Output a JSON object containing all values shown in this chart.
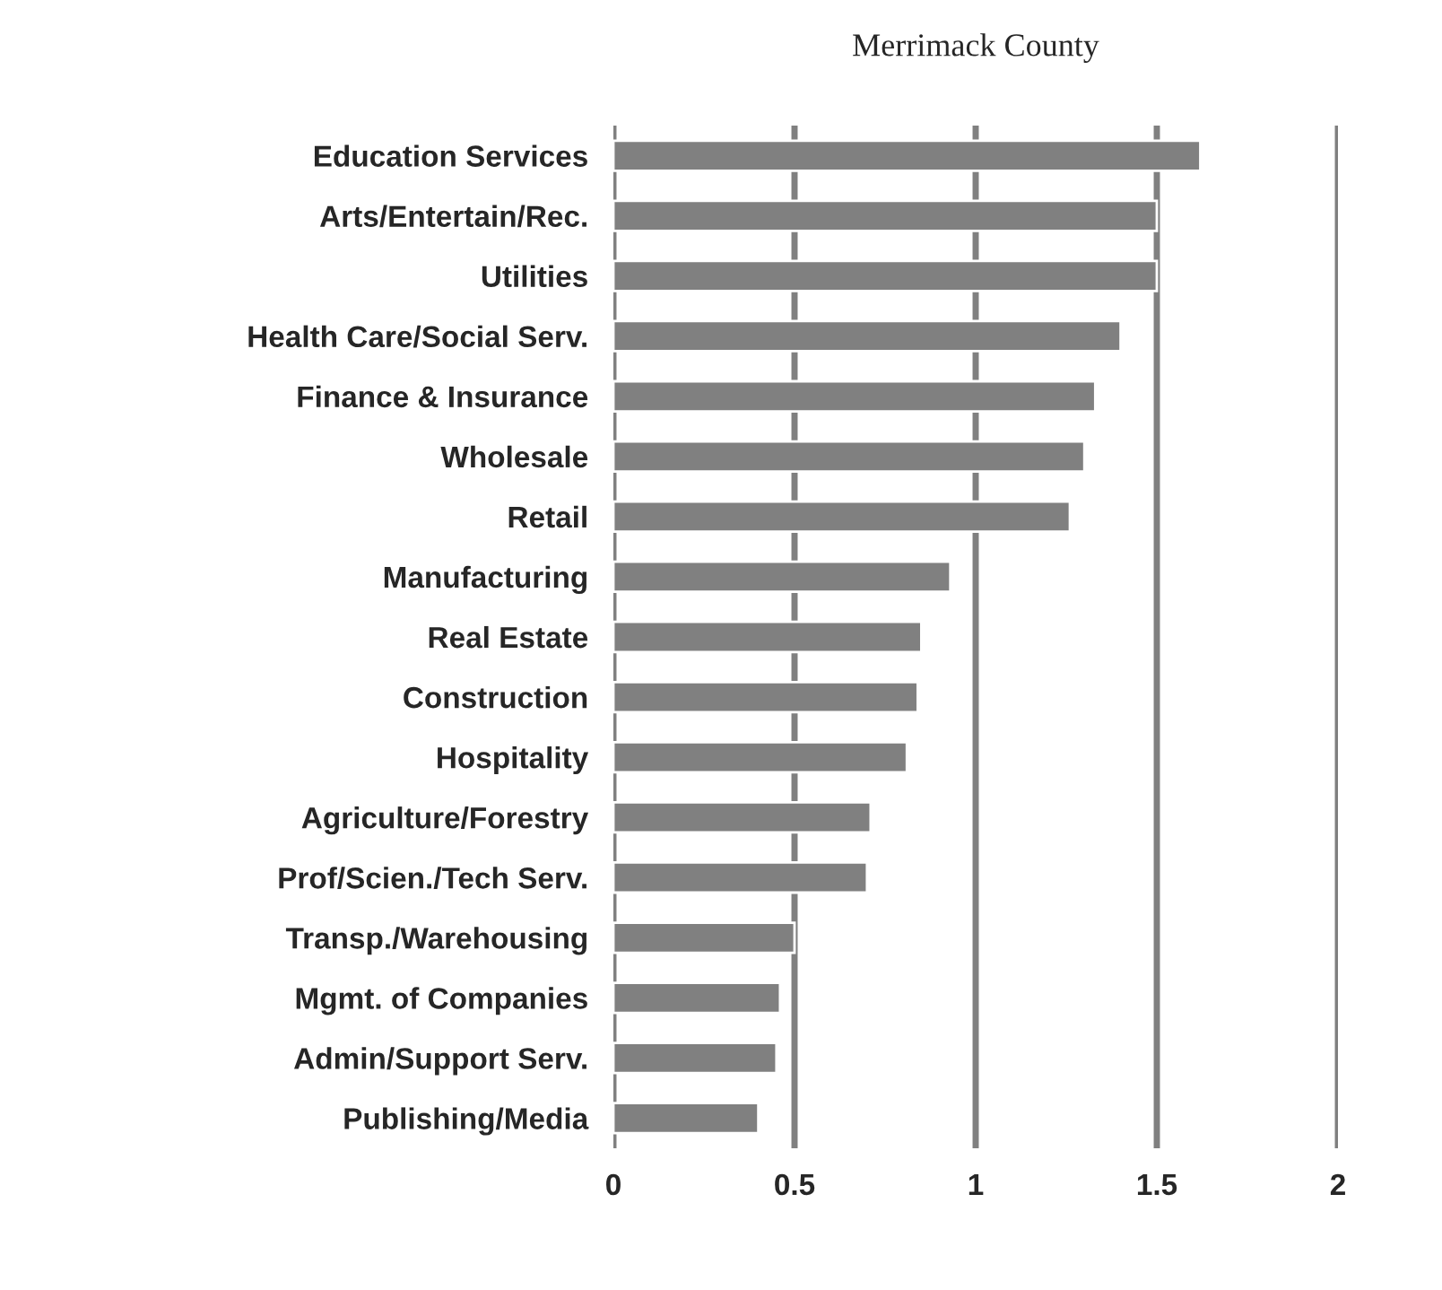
{
  "chart_data": {
    "type": "bar",
    "orientation": "horizontal",
    "title": "Merrimack County",
    "categories": [
      "Education Services",
      "Arts/Entertain/Rec.",
      "Utilities",
      "Health Care/Social Serv.",
      "Finance & Insurance",
      "Wholesale",
      "Retail",
      "Manufacturing",
      "Real Estate",
      "Construction",
      "Hospitality",
      "Agriculture/Forestry",
      "Prof/Scien./Tech Serv.",
      "Transp./Warehousing",
      "Mgmt. of Companies",
      "Admin/Support Serv.",
      "Publishing/Media"
    ],
    "values": [
      1.62,
      1.5,
      1.5,
      1.4,
      1.33,
      1.3,
      1.26,
      0.93,
      0.85,
      0.84,
      0.81,
      0.71,
      0.7,
      0.5,
      0.46,
      0.45,
      0.4
    ],
    "color": "#808080",
    "xlim": [
      0,
      2
    ],
    "xticks": [
      0,
      0.5,
      1,
      1.5,
      2
    ],
    "grid": "x"
  }
}
